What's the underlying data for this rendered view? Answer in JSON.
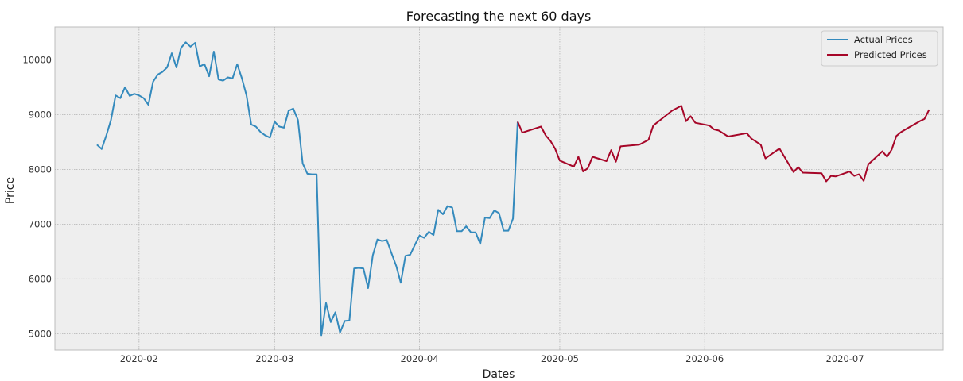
{
  "chart_data": {
    "type": "line",
    "title": "Forecasting the next 60 days",
    "xlabel": "Dates",
    "ylabel": "Price",
    "x_ticks": [
      "2020-02",
      "2020-03",
      "2020-04",
      "2020-05",
      "2020-06",
      "2020-07"
    ],
    "y_ticks": [
      5000,
      6000,
      7000,
      8000,
      9000,
      10000
    ],
    "xlim": [
      "2020-01-14",
      "2020-07-22"
    ],
    "ylim": [
      4700,
      10600
    ],
    "grid": true,
    "legend_position": "top-right",
    "series": [
      {
        "name": "Actual Prices",
        "color": "#348abd",
        "points": [
          [
            "2020-01-23",
            8450
          ],
          [
            "2020-01-24",
            8370
          ],
          [
            "2020-01-25",
            8620
          ],
          [
            "2020-01-26",
            8900
          ],
          [
            "2020-01-27",
            9350
          ],
          [
            "2020-01-28",
            9300
          ],
          [
            "2020-01-29",
            9500
          ],
          [
            "2020-01-30",
            9340
          ],
          [
            "2020-01-31",
            9380
          ],
          [
            "2020-02-01",
            9350
          ],
          [
            "2020-02-02",
            9300
          ],
          [
            "2020-02-03",
            9180
          ],
          [
            "2020-02-04",
            9600
          ],
          [
            "2020-02-05",
            9730
          ],
          [
            "2020-02-06",
            9780
          ],
          [
            "2020-02-07",
            9860
          ],
          [
            "2020-02-08",
            10120
          ],
          [
            "2020-02-09",
            9860
          ],
          [
            "2020-02-10",
            10220
          ],
          [
            "2020-02-11",
            10320
          ],
          [
            "2020-02-12",
            10240
          ],
          [
            "2020-02-13",
            10310
          ],
          [
            "2020-02-14",
            9880
          ],
          [
            "2020-02-15",
            9920
          ],
          [
            "2020-02-16",
            9700
          ],
          [
            "2020-02-17",
            10150
          ],
          [
            "2020-02-18",
            9640
          ],
          [
            "2020-02-19",
            9620
          ],
          [
            "2020-02-20",
            9680
          ],
          [
            "2020-02-21",
            9660
          ],
          [
            "2020-02-22",
            9920
          ],
          [
            "2020-02-23",
            9660
          ],
          [
            "2020-02-24",
            9350
          ],
          [
            "2020-02-25",
            8820
          ],
          [
            "2020-02-26",
            8780
          ],
          [
            "2020-02-27",
            8680
          ],
          [
            "2020-02-28",
            8620
          ],
          [
            "2020-02-29",
            8580
          ],
          [
            "2020-03-01",
            8870
          ],
          [
            "2020-03-02",
            8780
          ],
          [
            "2020-03-03",
            8760
          ],
          [
            "2020-03-04",
            9070
          ],
          [
            "2020-03-05",
            9110
          ],
          [
            "2020-03-06",
            8900
          ],
          [
            "2020-03-07",
            8110
          ],
          [
            "2020-03-08",
            7920
          ],
          [
            "2020-03-09",
            7910
          ],
          [
            "2020-03-10",
            7910
          ],
          [
            "2020-03-11",
            4970
          ],
          [
            "2020-03-12",
            5560
          ],
          [
            "2020-03-13",
            5210
          ],
          [
            "2020-03-14",
            5390
          ],
          [
            "2020-03-15",
            5020
          ],
          [
            "2020-03-16",
            5230
          ],
          [
            "2020-03-17",
            5240
          ],
          [
            "2020-03-18",
            6190
          ],
          [
            "2020-03-19",
            6200
          ],
          [
            "2020-03-20",
            6190
          ],
          [
            "2020-03-21",
            5830
          ],
          [
            "2020-03-22",
            6430
          ],
          [
            "2020-03-23",
            6720
          ],
          [
            "2020-03-24",
            6690
          ],
          [
            "2020-03-25",
            6710
          ],
          [
            "2020-03-26",
            6470
          ],
          [
            "2020-03-27",
            6240
          ],
          [
            "2020-03-28",
            5930
          ],
          [
            "2020-03-29",
            6420
          ],
          [
            "2020-03-30",
            6440
          ],
          [
            "2020-03-31",
            6620
          ],
          [
            "2020-04-01",
            6790
          ],
          [
            "2020-04-02",
            6750
          ],
          [
            "2020-04-03",
            6860
          ],
          [
            "2020-04-04",
            6800
          ],
          [
            "2020-04-05",
            7260
          ],
          [
            "2020-04-06",
            7180
          ],
          [
            "2020-04-07",
            7330
          ],
          [
            "2020-04-08",
            7300
          ],
          [
            "2020-04-09",
            6870
          ],
          [
            "2020-04-10",
            6870
          ],
          [
            "2020-04-11",
            6960
          ],
          [
            "2020-04-12",
            6850
          ],
          [
            "2020-04-13",
            6850
          ],
          [
            "2020-04-14",
            6640
          ],
          [
            "2020-04-15",
            7120
          ],
          [
            "2020-04-16",
            7110
          ],
          [
            "2020-04-17",
            7250
          ],
          [
            "2020-04-18",
            7200
          ],
          [
            "2020-04-19",
            6880
          ],
          [
            "2020-04-20",
            6880
          ],
          [
            "2020-04-21",
            7100
          ],
          [
            "2020-04-22",
            8870
          ]
        ]
      },
      {
        "name": "Predicted Prices",
        "color": "#a60628",
        "points": [
          [
            "2020-04-22",
            8870
          ],
          [
            "2020-04-23",
            8670
          ],
          [
            "2020-04-27",
            8780
          ],
          [
            "2020-04-28",
            8620
          ],
          [
            "2020-04-29",
            8520
          ],
          [
            "2020-04-30",
            8380
          ],
          [
            "2020-05-01",
            8160
          ],
          [
            "2020-05-04",
            8050
          ],
          [
            "2020-05-05",
            8230
          ],
          [
            "2020-05-06",
            7960
          ],
          [
            "2020-05-07",
            8020
          ],
          [
            "2020-05-08",
            8230
          ],
          [
            "2020-05-11",
            8150
          ],
          [
            "2020-05-12",
            8350
          ],
          [
            "2020-05-13",
            8140
          ],
          [
            "2020-05-14",
            8420
          ],
          [
            "2020-05-18",
            8450
          ],
          [
            "2020-05-20",
            8540
          ],
          [
            "2020-05-21",
            8800
          ],
          [
            "2020-05-25",
            9070
          ],
          [
            "2020-05-27",
            9160
          ],
          [
            "2020-05-28",
            8880
          ],
          [
            "2020-05-29",
            8970
          ],
          [
            "2020-05-30",
            8850
          ],
          [
            "2020-06-02",
            8800
          ],
          [
            "2020-06-03",
            8730
          ],
          [
            "2020-06-04",
            8710
          ],
          [
            "2020-06-06",
            8600
          ],
          [
            "2020-06-10",
            8660
          ],
          [
            "2020-06-11",
            8560
          ],
          [
            "2020-06-13",
            8450
          ],
          [
            "2020-06-14",
            8200
          ],
          [
            "2020-06-17",
            8380
          ],
          [
            "2020-06-20",
            7950
          ],
          [
            "2020-06-21",
            8040
          ],
          [
            "2020-06-22",
            7940
          ],
          [
            "2020-06-26",
            7930
          ],
          [
            "2020-06-27",
            7780
          ],
          [
            "2020-06-28",
            7880
          ],
          [
            "2020-06-29",
            7870
          ],
          [
            "2020-07-02",
            7960
          ],
          [
            "2020-07-03",
            7880
          ],
          [
            "2020-07-04",
            7910
          ],
          [
            "2020-07-05",
            7790
          ],
          [
            "2020-07-06",
            8090
          ],
          [
            "2020-07-07",
            8170
          ],
          [
            "2020-07-09",
            8330
          ],
          [
            "2020-07-10",
            8230
          ],
          [
            "2020-07-11",
            8360
          ],
          [
            "2020-07-12",
            8610
          ],
          [
            "2020-07-13",
            8680
          ],
          [
            "2020-07-15",
            8780
          ],
          [
            "2020-07-17",
            8880
          ],
          [
            "2020-07-18",
            8920
          ],
          [
            "2020-07-19",
            9090
          ]
        ]
      }
    ]
  }
}
